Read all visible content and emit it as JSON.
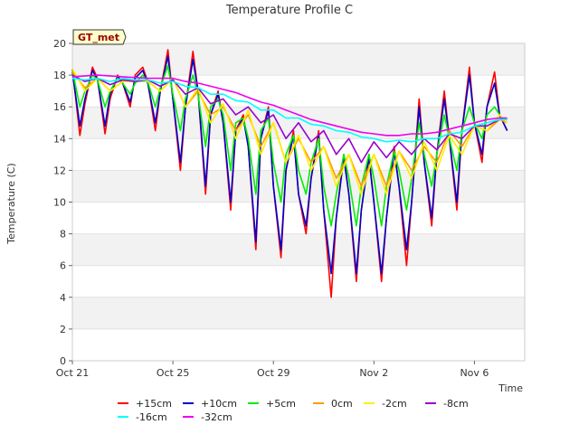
{
  "chart_data": {
    "type": "line",
    "title": "Temperature Profile C",
    "xlabel": "Time",
    "ylabel": "Temperature (C)",
    "badge": "GT_met",
    "ylim": [
      0,
      20
    ],
    "yticks": [
      0,
      2,
      4,
      6,
      8,
      10,
      12,
      14,
      16,
      18,
      20
    ],
    "xlim": [
      0,
      18
    ],
    "xticks": [
      {
        "value": 0,
        "label": "Oct 21"
      },
      {
        "value": 4,
        "label": "Oct 25"
      },
      {
        "value": 8,
        "label": "Oct 29"
      },
      {
        "value": 12,
        "label": "Nov 2"
      },
      {
        "value": 16,
        "label": "Nov 6"
      }
    ],
    "x_units": "days since Oct 21",
    "grid": "horizontal-bands",
    "legend_placement": "bottom",
    "series": [
      {
        "name": "+15cm",
        "color": "#ff0000",
        "x": [
          0,
          0.3,
          0.5,
          0.8,
          1.0,
          1.3,
          1.5,
          1.8,
          2.0,
          2.3,
          2.5,
          2.8,
          3.0,
          3.3,
          3.5,
          3.8,
          4.0,
          4.3,
          4.5,
          4.8,
          5.0,
          5.3,
          5.5,
          5.8,
          6.0,
          6.3,
          6.5,
          6.8,
          7.0,
          7.3,
          7.5,
          7.8,
          8.0,
          8.3,
          8.5,
          8.8,
          9.0,
          9.3,
          9.5,
          9.8,
          10.0,
          10.3,
          10.5,
          10.8,
          11.0,
          11.3,
          11.5,
          11.8,
          12.0,
          12.3,
          12.5,
          12.8,
          13.0,
          13.3,
          13.5,
          13.8,
          14.0,
          14.3,
          14.5,
          14.8,
          15.0,
          15.3,
          15.5,
          15.8,
          16.0,
          16.3,
          16.5,
          16.8,
          17.0,
          17.3
        ],
        "values": [
          18.4,
          14.2,
          16.2,
          18.5,
          17.8,
          14.3,
          16.5,
          18.0,
          17.5,
          16.0,
          18.0,
          18.5,
          17.6,
          14.5,
          17.0,
          19.6,
          16.5,
          12.0,
          16.0,
          19.5,
          17.0,
          10.5,
          15.5,
          17.0,
          15.0,
          9.5,
          14.5,
          15.5,
          13.5,
          7.0,
          14.0,
          16.0,
          11.0,
          6.5,
          12.0,
          14.5,
          10.5,
          8.0,
          11.5,
          14.5,
          9.5,
          4.0,
          9.0,
          13.0,
          10.5,
          5.0,
          9.5,
          13.0,
          10.0,
          5.0,
          9.0,
          13.5,
          11.0,
          6.0,
          10.0,
          16.5,
          12.5,
          8.5,
          13.0,
          17.0,
          14.0,
          9.5,
          14.5,
          18.5,
          15.0,
          12.5,
          16.0,
          18.2,
          15.5,
          14.5
        ]
      },
      {
        "name": "+10cm",
        "color": "#0000cc",
        "x": [
          0,
          0.3,
          0.5,
          0.8,
          1.0,
          1.3,
          1.5,
          1.8,
          2.0,
          2.3,
          2.5,
          2.8,
          3.0,
          3.3,
          3.5,
          3.8,
          4.0,
          4.3,
          4.5,
          4.8,
          5.0,
          5.3,
          5.5,
          5.8,
          6.0,
          6.3,
          6.5,
          6.8,
          7.0,
          7.3,
          7.5,
          7.8,
          8.0,
          8.3,
          8.5,
          8.8,
          9.0,
          9.3,
          9.5,
          9.8,
          10.0,
          10.3,
          10.5,
          10.8,
          11.0,
          11.3,
          11.5,
          11.8,
          12.0,
          12.3,
          12.5,
          12.8,
          13.0,
          13.3,
          13.5,
          13.8,
          14.0,
          14.3,
          14.5,
          14.8,
          15.0,
          15.3,
          15.5,
          15.8,
          16.0,
          16.3,
          16.5,
          16.8,
          17.0,
          17.3
        ],
        "values": [
          18.2,
          14.8,
          16.5,
          18.3,
          17.7,
          14.8,
          16.8,
          17.9,
          17.5,
          16.3,
          17.8,
          18.3,
          17.5,
          15.0,
          17.0,
          19.2,
          16.5,
          12.5,
          16.0,
          19.0,
          17.0,
          11.0,
          15.5,
          16.8,
          15.0,
          10.0,
          14.5,
          15.3,
          13.5,
          7.5,
          14.0,
          15.8,
          11.0,
          7.0,
          12.0,
          14.2,
          10.5,
          8.5,
          11.5,
          14.2,
          9.5,
          5.5,
          9.0,
          12.8,
          10.5,
          5.5,
          9.5,
          12.8,
          10.0,
          5.5,
          9.0,
          13.2,
          11.0,
          7.0,
          10.0,
          16.0,
          12.5,
          9.0,
          13.0,
          16.5,
          14.0,
          10.0,
          14.5,
          18.0,
          15.0,
          13.0,
          16.0,
          17.5,
          15.5,
          14.5
        ]
      },
      {
        "name": "+5cm",
        "color": "#00ee00",
        "x": [
          0,
          0.3,
          0.5,
          0.8,
          1.0,
          1.3,
          1.5,
          1.8,
          2.0,
          2.3,
          2.5,
          2.8,
          3.0,
          3.3,
          3.5,
          3.8,
          4.0,
          4.3,
          4.5,
          4.8,
          5.0,
          5.3,
          5.5,
          5.8,
          6.0,
          6.3,
          6.5,
          6.8,
          7.0,
          7.3,
          7.5,
          7.8,
          8.0,
          8.3,
          8.5,
          8.8,
          9.0,
          9.3,
          9.5,
          9.8,
          10.0,
          10.3,
          10.5,
          10.8,
          11.0,
          11.3,
          11.5,
          11.8,
          12.0,
          12.3,
          12.5,
          12.8,
          13.0,
          13.3,
          13.5,
          13.8,
          14.0,
          14.3,
          14.5,
          14.8,
          15.0,
          15.3,
          15.5,
          15.8,
          16.0,
          16.3,
          16.5,
          16.8,
          17.0,
          17.3
        ],
        "values": [
          18.3,
          16.0,
          17.0,
          18.0,
          17.7,
          16.0,
          17.0,
          17.8,
          17.5,
          16.8,
          17.5,
          18.0,
          17.6,
          16.0,
          17.2,
          18.6,
          16.8,
          14.5,
          16.5,
          18.0,
          16.8,
          13.5,
          16.0,
          16.5,
          15.5,
          12.0,
          15.0,
          15.3,
          14.0,
          10.5,
          14.5,
          15.3,
          12.5,
          10.0,
          13.0,
          14.2,
          12.0,
          10.5,
          12.5,
          14.0,
          11.0,
          8.5,
          10.5,
          13.0,
          11.5,
          8.5,
          11.0,
          13.0,
          11.5,
          8.5,
          11.0,
          13.2,
          12.0,
          9.5,
          11.5,
          15.0,
          13.0,
          11.0,
          13.0,
          15.5,
          14.0,
          12.0,
          14.5,
          16.0,
          15.0,
          14.0,
          15.5,
          16.0,
          15.5,
          15.0
        ]
      },
      {
        "name": "0cm",
        "color": "#ff9900",
        "x": [
          0,
          0.5,
          1.0,
          1.5,
          2.0,
          2.5,
          3.0,
          3.5,
          4.0,
          4.5,
          5.0,
          5.5,
          6.0,
          6.5,
          7.0,
          7.5,
          8.0,
          8.5,
          9.0,
          9.5,
          10.0,
          10.5,
          11.0,
          11.5,
          12.0,
          12.5,
          13.0,
          13.5,
          14.0,
          14.5,
          15.0,
          15.5,
          16.0,
          16.5,
          17.0,
          17.3
        ],
        "values": [
          18.2,
          17.2,
          17.8,
          17.0,
          17.6,
          17.6,
          17.6,
          17.0,
          17.8,
          16.0,
          17.0,
          15.5,
          16.0,
          14.5,
          15.5,
          13.5,
          15.0,
          12.5,
          14.0,
          12.5,
          13.5,
          11.5,
          13.0,
          11.0,
          13.0,
          11.0,
          13.2,
          12.0,
          13.5,
          12.5,
          14.5,
          13.5,
          14.8,
          14.5,
          15.2,
          15.0
        ]
      },
      {
        "name": "-2cm",
        "color": "#ffee00",
        "x": [
          0,
          0.5,
          1.0,
          1.5,
          2.0,
          2.5,
          3.0,
          3.5,
          4.0,
          4.5,
          5.0,
          5.5,
          6.0,
          6.5,
          7.0,
          7.5,
          8.0,
          8.5,
          9.0,
          9.5,
          10.0,
          10.5,
          11.0,
          11.5,
          12.0,
          12.5,
          13.0,
          13.5,
          14.0,
          14.5,
          15.0,
          15.5,
          16.0,
          16.5,
          17.0,
          17.3
        ],
        "values": [
          18.4,
          17.0,
          17.8,
          17.0,
          17.6,
          17.6,
          17.6,
          17.0,
          17.8,
          16.0,
          17.2,
          15.0,
          16.2,
          14.0,
          15.8,
          13.0,
          15.0,
          12.5,
          14.2,
          12.0,
          13.5,
          11.0,
          13.0,
          10.5,
          13.0,
          10.5,
          13.2,
          11.5,
          13.8,
          12.0,
          14.2,
          13.0,
          14.8,
          14.5,
          15.5,
          15.0
        ]
      },
      {
        "name": "-8cm",
        "color": "#9900cc",
        "x": [
          0,
          0.5,
          1.0,
          1.5,
          2.0,
          2.5,
          3.0,
          3.5,
          4.0,
          4.5,
          5.0,
          5.5,
          6.0,
          6.5,
          7.0,
          7.5,
          8.0,
          8.5,
          9.0,
          9.5,
          10.0,
          10.5,
          11.0,
          11.5,
          12.0,
          12.5,
          13.0,
          13.5,
          14.0,
          14.5,
          15.0,
          15.5,
          16.0,
          16.5,
          17.0,
          17.3
        ],
        "values": [
          18.0,
          17.6,
          17.8,
          17.4,
          17.7,
          17.6,
          17.7,
          17.3,
          17.7,
          16.8,
          17.2,
          16.2,
          16.5,
          15.5,
          16.0,
          15.0,
          15.5,
          14.0,
          15.0,
          13.8,
          14.5,
          13.0,
          14.0,
          12.5,
          13.8,
          12.8,
          13.8,
          13.0,
          14.0,
          13.3,
          14.3,
          14.0,
          14.8,
          14.8,
          15.2,
          15.2
        ]
      },
      {
        "name": "-16cm",
        "color": "#00ffff",
        "x": [
          0,
          0.5,
          1.0,
          1.5,
          2.0,
          2.5,
          3.0,
          3.5,
          4.0,
          4.5,
          5.0,
          5.5,
          6.0,
          6.5,
          7.0,
          7.5,
          8.0,
          8.5,
          9.0,
          9.5,
          10.0,
          10.5,
          11.0,
          11.5,
          12.0,
          12.5,
          13.0,
          13.5,
          14.0,
          14.5,
          15.0,
          15.5,
          16.0,
          16.5,
          17.0,
          17.3
        ],
        "values": [
          17.8,
          17.7,
          17.8,
          17.6,
          17.8,
          17.7,
          17.7,
          17.5,
          17.6,
          17.3,
          17.2,
          16.8,
          16.8,
          16.4,
          16.3,
          15.8,
          15.8,
          15.3,
          15.3,
          14.9,
          14.8,
          14.5,
          14.4,
          14.1,
          14.0,
          13.8,
          13.9,
          13.8,
          14.0,
          14.0,
          14.3,
          14.4,
          14.8,
          15.0,
          15.2,
          15.2
        ]
      },
      {
        "name": "-32cm",
        "color": "#ee00ee",
        "x": [
          0,
          1.0,
          2.0,
          3.0,
          4.0,
          4.5,
          5.0,
          5.5,
          6.0,
          6.5,
          7.0,
          7.5,
          8.0,
          8.5,
          9.0,
          9.5,
          10.0,
          10.5,
          11.0,
          11.5,
          12.0,
          12.5,
          13.0,
          13.5,
          14.0,
          14.5,
          15.0,
          15.5,
          16.0,
          16.5,
          17.0,
          17.3
        ],
        "values": [
          17.9,
          18.0,
          17.9,
          17.8,
          17.8,
          17.6,
          17.5,
          17.3,
          17.1,
          16.9,
          16.6,
          16.3,
          16.1,
          15.8,
          15.5,
          15.2,
          15.0,
          14.8,
          14.6,
          14.4,
          14.3,
          14.2,
          14.2,
          14.3,
          14.3,
          14.4,
          14.6,
          14.8,
          15.0,
          15.2,
          15.3,
          15.3
        ]
      }
    ]
  }
}
